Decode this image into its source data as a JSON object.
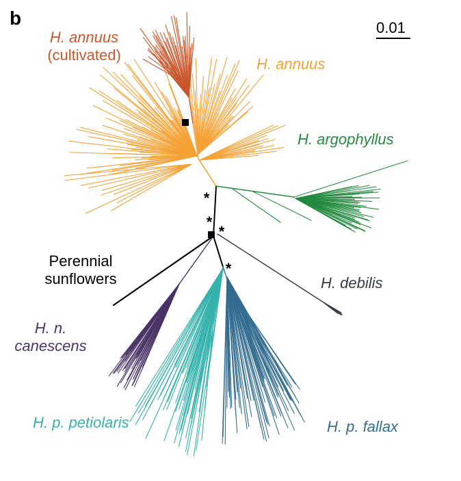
{
  "figure": {
    "panel_letter": "b",
    "scale_bar_label": "0.01"
  },
  "clades": [
    {
      "id": "h-annuus-cultivated",
      "lines": [
        "H. annuus",
        "(cultivated)"
      ],
      "italic_first_line": true,
      "color": "#c9572b"
    },
    {
      "id": "h-annuus",
      "lines": [
        "H. annuus"
      ],
      "italic_first_line": true,
      "color": "#f4a235"
    },
    {
      "id": "h-argophyllus",
      "lines": [
        "H. argophyllus"
      ],
      "italic_first_line": true,
      "color": "#238a3f"
    },
    {
      "id": "perennial-sunflowers",
      "lines": [
        "Perennial",
        "sunflowers"
      ],
      "italic_first_line": false,
      "color": "#000000"
    },
    {
      "id": "h-debilis",
      "lines": [
        "H. debilis"
      ],
      "italic_first_line": true,
      "color": "#333b40"
    },
    {
      "id": "h-n-canescens",
      "lines": [
        "H. n.",
        "canescens"
      ],
      "italic_first_line": true,
      "color": "#4b3368"
    },
    {
      "id": "h-p-petiolaris",
      "lines": [
        "H. p. petiolaris"
      ],
      "italic_first_line": true,
      "color": "#36b2ad"
    },
    {
      "id": "h-p-fallax",
      "lines": [
        "H. p. fallax"
      ],
      "italic_first_line": true,
      "color": "#336d90"
    }
  ],
  "node_markers": {
    "asterisk": "*",
    "square_count": 2,
    "asterisk_count": 4
  }
}
